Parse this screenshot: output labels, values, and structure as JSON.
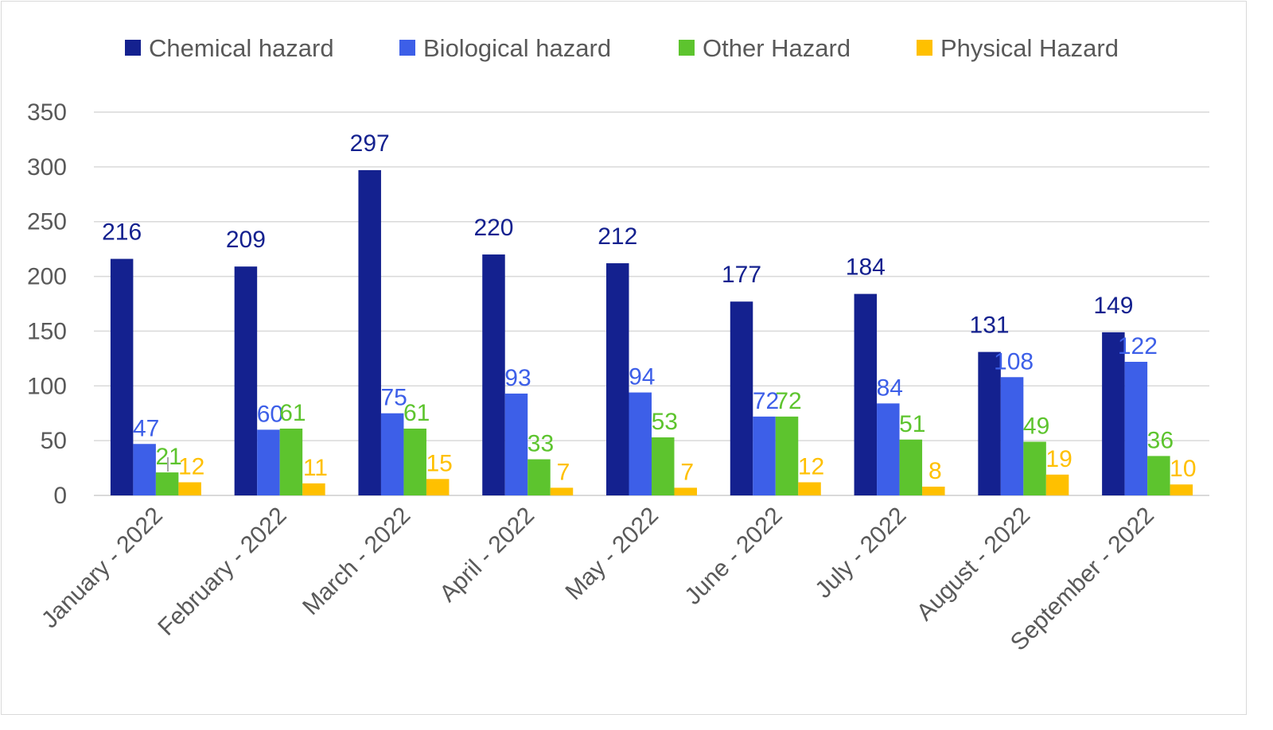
{
  "chart_data": {
    "type": "bar",
    "title": "",
    "xlabel": "",
    "ylabel": "",
    "ylim": [
      0,
      350
    ],
    "yticks": [
      0,
      50,
      100,
      150,
      200,
      250,
      300,
      350
    ],
    "grid": true,
    "legend_position": "top",
    "categories": [
      "January - 2022",
      "February - 2022",
      "March - 2022",
      "April - 2022",
      "May - 2022",
      "June - 2022",
      "July - 2022",
      "August - 2022",
      "September - 2022"
    ],
    "series": [
      {
        "name": "Chemical hazard",
        "color": "#14218f",
        "values": [
          216,
          209,
          297,
          220,
          212,
          177,
          184,
          131,
          149
        ]
      },
      {
        "name": "Biological hazard",
        "color": "#3d5fe8",
        "values": [
          47,
          60,
          75,
          93,
          94,
          72,
          84,
          108,
          122
        ]
      },
      {
        "name": "Other Hazard",
        "color": "#5dc42e",
        "values": [
          21,
          61,
          61,
          33,
          53,
          72,
          51,
          49,
          36
        ]
      },
      {
        "name": "Physical Hazard",
        "color": "#ffc000",
        "values": [
          12,
          11,
          15,
          7,
          7,
          12,
          8,
          19,
          10
        ]
      }
    ],
    "text_color": "#595959",
    "grid_color": "#d9d9d9"
  }
}
